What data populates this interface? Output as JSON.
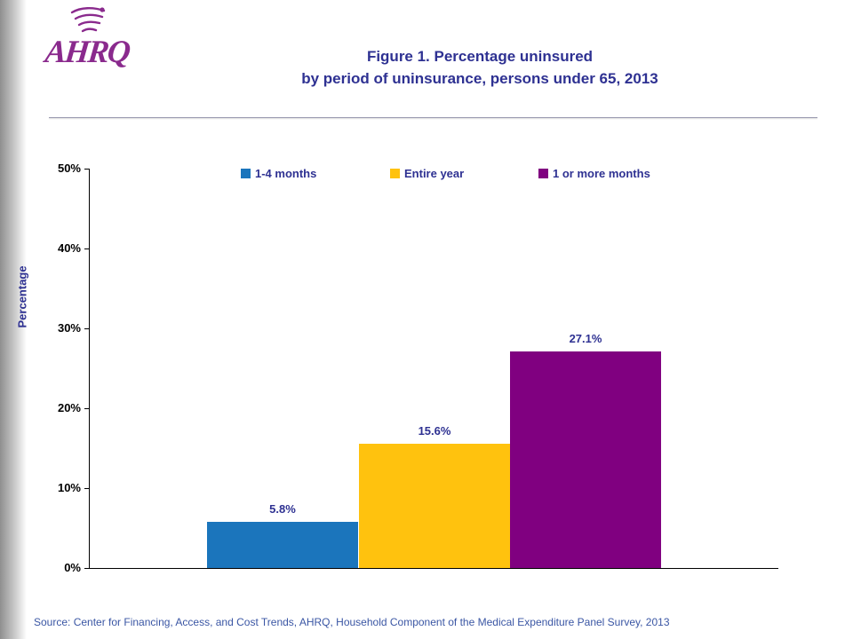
{
  "page": {
    "title_line1": "Figure 1. Percentage uninsured",
    "title_line2": "by period of uninsurance, persons under 65, 2013",
    "logo_text": "AHRQ",
    "source": "Source: Center for Financing, Access, and Cost Trends, AHRQ, Household Component of the Medical Expenditure Panel Survey,  2013"
  },
  "colors": {
    "title_blue": "#2E3192",
    "logo_purple": "#8A2A8D",
    "source_blue": "#3A56A4",
    "bar_blue": "#1B75BC",
    "bar_yellow": "#FFC20E",
    "bar_purple": "#800080"
  },
  "chart_data": {
    "type": "bar",
    "title": "Figure 1. Percentage uninsured by period of uninsurance, persons under 65, 2013",
    "categories": [
      "1-4 months",
      "Entire year",
      "1 or more months"
    ],
    "values": [
      5.8,
      15.6,
      27.1
    ],
    "value_labels": [
      "5.8%",
      "15.6%",
      "27.1%"
    ],
    "series_colors": [
      "#1B75BC",
      "#FFC20E",
      "#800080"
    ],
    "xlabel": "",
    "ylabel": "Percentage",
    "ylim": [
      0,
      50
    ],
    "ytick_labels": [
      "0%",
      "10%",
      "20%",
      "30%",
      "40%",
      "50%"
    ],
    "grid": false,
    "legend_position": "top"
  }
}
